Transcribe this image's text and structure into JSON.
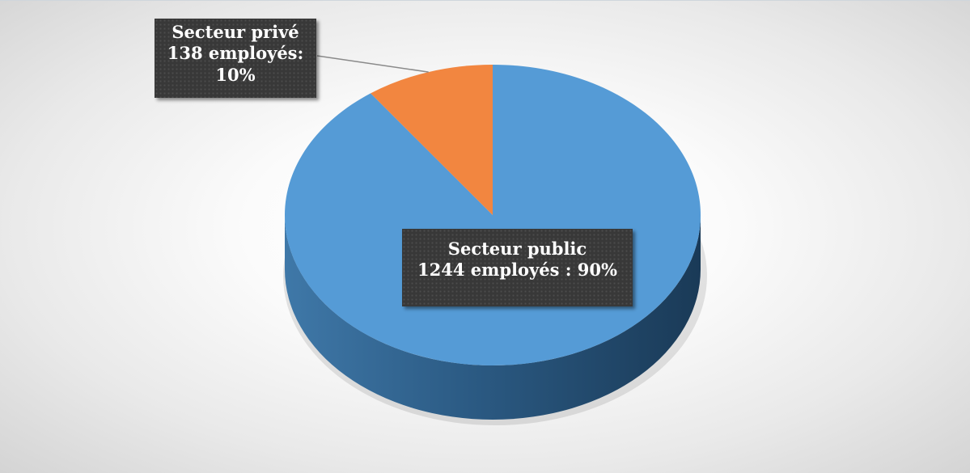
{
  "chart_data": {
    "type": "pie",
    "title": "",
    "slices": [
      {
        "label": "Secteur public",
        "count_text": "1244 employés : 90%",
        "value": 1244,
        "percent": 90,
        "color": "#559BD6"
      },
      {
        "label": "Secteur privé",
        "count_text": "138 employés:",
        "percent_text": "10%",
        "value": 138,
        "percent": 10,
        "color": "#F28640"
      }
    ],
    "legend": "none",
    "style": "3d"
  }
}
